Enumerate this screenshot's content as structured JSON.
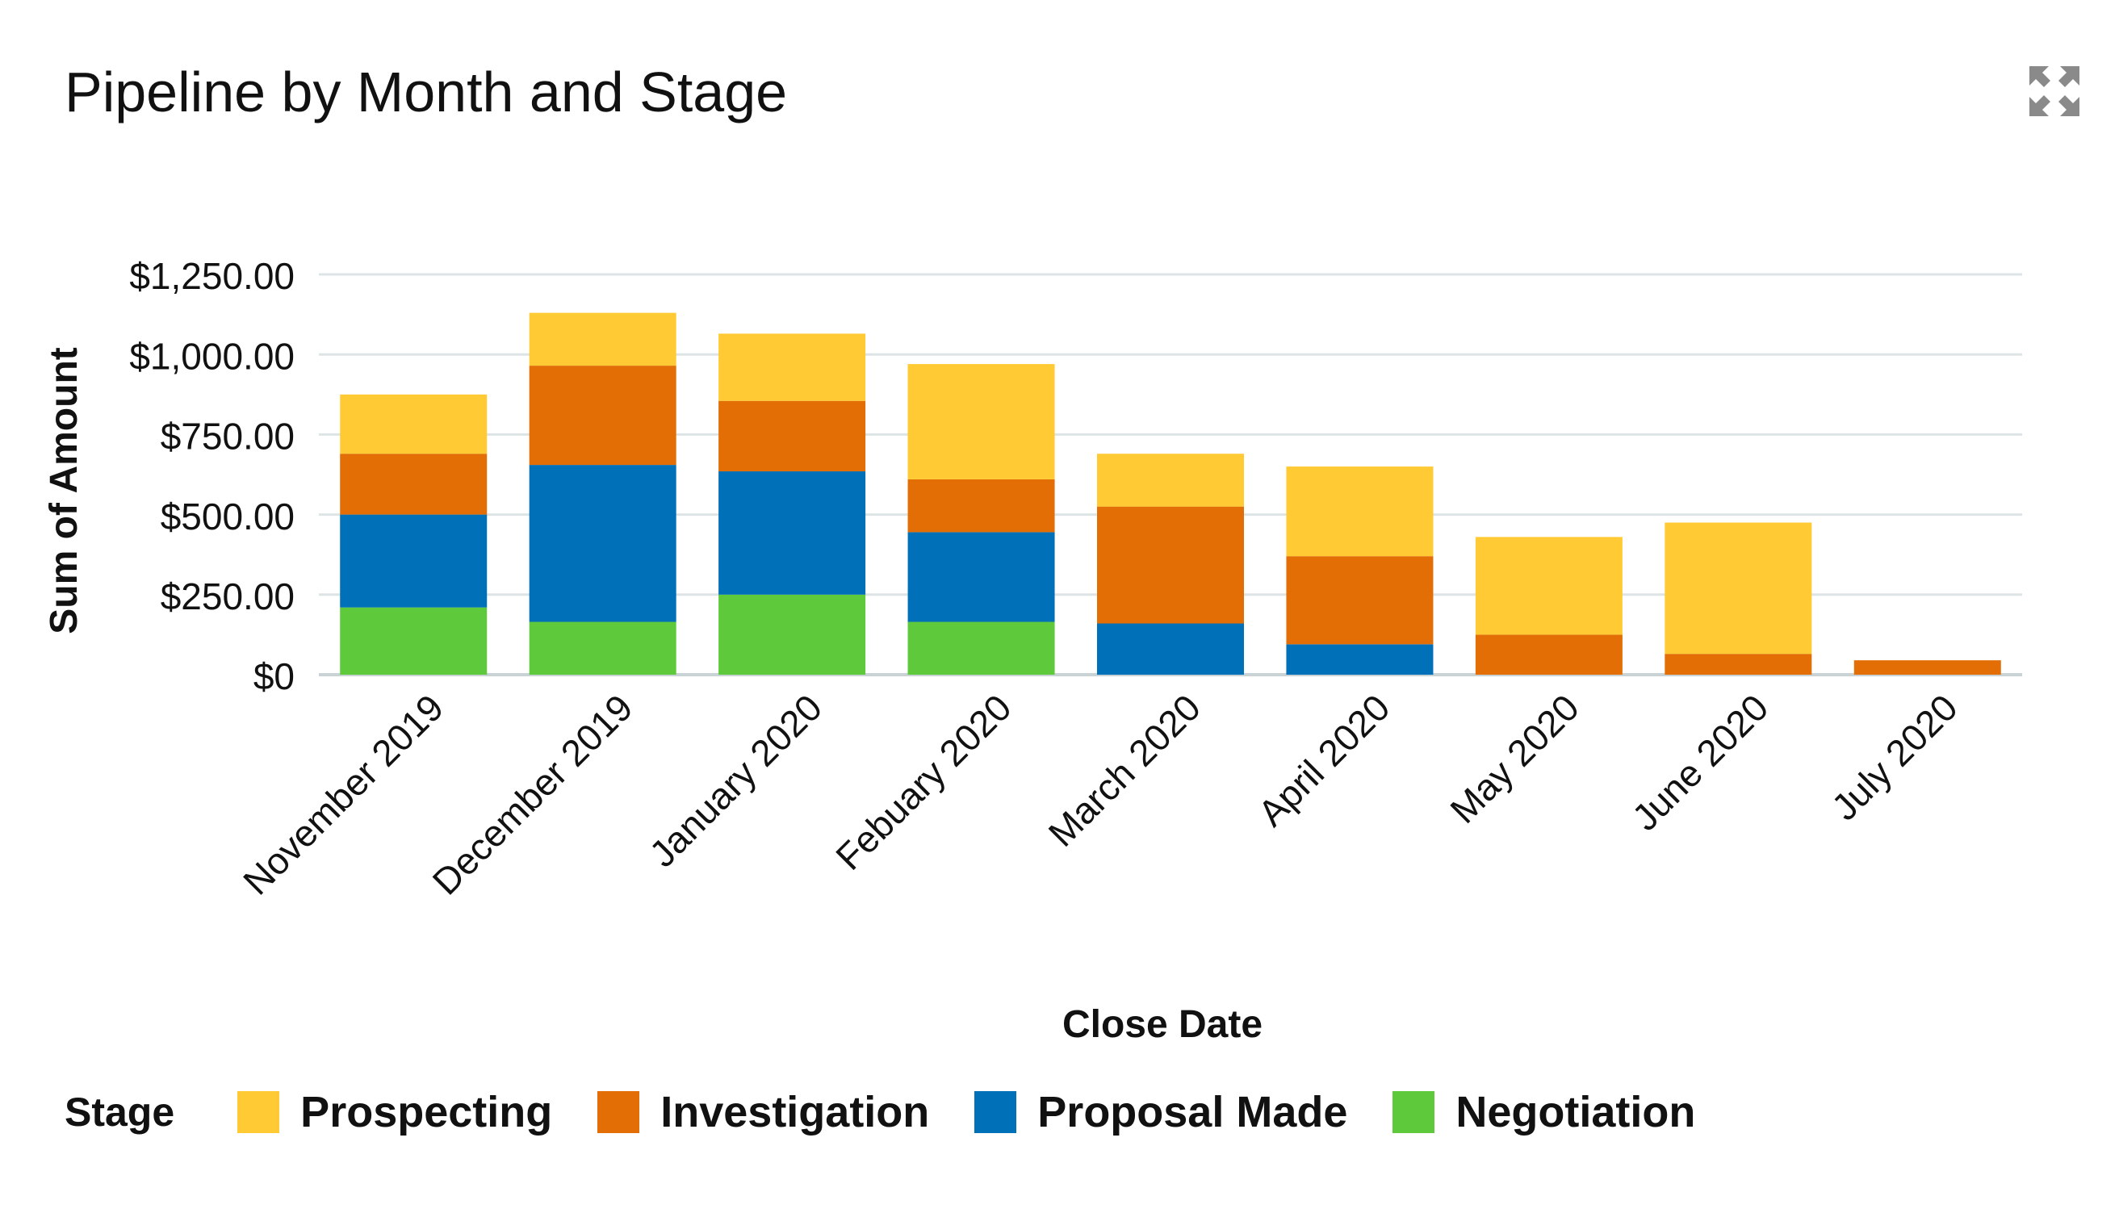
{
  "header": {
    "title": "Pipeline by Month and Stage",
    "expand_icon": "expand-icon"
  },
  "legend": {
    "title": "Stage"
  },
  "chart_data": {
    "type": "bar",
    "stacked": true,
    "title": "Pipeline by Month and Stage",
    "xlabel": "Close Date",
    "ylabel": "Sum of Amount",
    "ylim": [
      0,
      1250
    ],
    "yticks": [
      0,
      250,
      500,
      750,
      1000,
      1250
    ],
    "ytick_labels": [
      "$0",
      "$250.00",
      "$500.00",
      "$750.00",
      "$1,000.00",
      "$1,250.00"
    ],
    "grid": true,
    "legend_position": "bottom-left",
    "categories": [
      "November 2019",
      "December 2019",
      "January 2020",
      "Febuary 2020",
      "March 2020",
      "April 2020",
      "May 2020",
      "June 2020",
      "July 2020"
    ],
    "series": [
      {
        "name": "Negotiation",
        "color": "#5ec93a",
        "values": [
          210,
          165,
          250,
          165,
          0,
          0,
          0,
          0,
          0
        ]
      },
      {
        "name": "Proposal Made",
        "color": "#0070b8",
        "values": [
          290,
          490,
          385,
          280,
          160,
          95,
          0,
          0,
          0
        ]
      },
      {
        "name": "Investigation",
        "color": "#e36e05",
        "values": [
          190,
          310,
          220,
          165,
          365,
          275,
          125,
          65,
          45
        ]
      },
      {
        "name": "Prospecting",
        "color": "#ffca33",
        "values": [
          185,
          165,
          210,
          360,
          165,
          280,
          305,
          410,
          0
        ]
      }
    ],
    "legend_order": [
      "Prospecting",
      "Investigation",
      "Proposal Made",
      "Negotiation"
    ]
  }
}
